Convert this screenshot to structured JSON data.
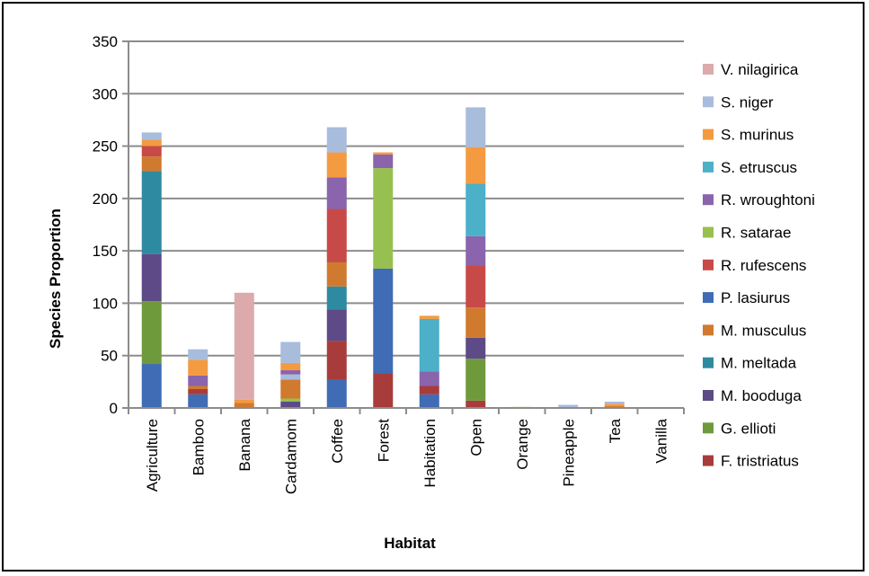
{
  "chart_data": {
    "type": "bar",
    "stacked": true,
    "title": "",
    "xlabel": "Habitat",
    "ylabel": "Species Proportion",
    "ylim": [
      0,
      350
    ],
    "yticks": [
      0,
      50,
      100,
      150,
      200,
      250,
      300,
      350
    ],
    "grid": true,
    "legend_position": "right",
    "categories": [
      "Agriculture",
      "Bamboo",
      "Banana",
      "Cardamom",
      "Coffee",
      "Forest",
      "Habitation",
      "Open",
      "Orange",
      "Pineapple",
      "Tea",
      "Vanilla"
    ],
    "series": [
      {
        "name": "F. tristriatus",
        "color": "#a83c3a",
        "values": [
          0,
          0,
          0,
          0,
          0,
          33,
          0,
          7,
          0,
          0,
          0,
          0
        ]
      },
      {
        "name": "G. ellioti",
        "color": "#6e9a3c",
        "values": [
          0,
          0,
          0,
          0,
          0,
          0,
          0,
          0,
          0,
          0,
          0,
          0
        ]
      },
      {
        "name": "M. booduga",
        "color": "#5e4a86",
        "values": [
          0,
          0,
          0,
          0,
          0,
          0,
          0,
          0,
          0,
          0,
          0,
          0
        ]
      },
      {
        "name": "M. meltada",
        "color": "#2e8aa0",
        "values": [
          0,
          0,
          0,
          0,
          0,
          0,
          0,
          0,
          0,
          0,
          0,
          0
        ]
      },
      {
        "name": "M. musculus",
        "color": "#d07a30",
        "values": [
          0,
          0,
          0,
          0,
          0,
          0,
          0,
          0,
          0,
          0,
          0,
          0
        ]
      },
      {
        "name": "P. lasiurus",
        "color": "#3f6cb4",
        "values": [
          0,
          0,
          0,
          0,
          0,
          100,
          0,
          0,
          0,
          0,
          0,
          0
        ]
      },
      {
        "name": "R. rufescens",
        "color": "#c84a48",
        "values": [
          0,
          0,
          0,
          0,
          0,
          0,
          0,
          0,
          0,
          0,
          0,
          0
        ]
      },
      {
        "name": "R. satarae",
        "color": "#98c050",
        "values": [
          0,
          0,
          0,
          0,
          0,
          96,
          0,
          0,
          0,
          0,
          0,
          0
        ]
      },
      {
        "name": "R. wroughtoni",
        "color": "#8a64ac",
        "values": [
          0,
          0,
          0,
          0,
          0,
          0,
          0,
          0,
          0,
          0,
          0,
          0
        ]
      },
      {
        "name": "S. etruscus",
        "color": "#4bb0c8",
        "values": [
          0,
          0,
          0,
          0,
          0,
          0,
          0,
          0,
          0,
          0,
          0,
          0
        ]
      },
      {
        "name": "S. murinus",
        "color": "#f49a40",
        "values": [
          0,
          0,
          0,
          0,
          0,
          0,
          0,
          0,
          0,
          0,
          0,
          0
        ]
      },
      {
        "name": "S. niger",
        "color": "#a8bcdc",
        "values": [
          0,
          0,
          0,
          0,
          0,
          0,
          0,
          0,
          0,
          0,
          0,
          0
        ]
      },
      {
        "name": "V. nilagirica",
        "color": "#dcaaaa",
        "values": [
          0,
          0,
          0,
          0,
          0,
          0,
          0,
          0,
          0,
          0,
          0,
          0
        ]
      }
    ],
    "segments": [
      [
        [
          "#3f6cb4",
          42
        ],
        [
          "#6e9a3c",
          60
        ],
        [
          "#5e4a86",
          45
        ],
        [
          "#2e8aa0",
          79
        ],
        [
          "#d07a30",
          14
        ],
        [
          "#c84a48",
          10
        ],
        [
          "#f49a40",
          6
        ],
        [
          "#a8bcdc",
          7
        ]
      ],
      [
        [
          "#3f6cb4",
          13
        ],
        [
          "#a83c3a",
          5
        ],
        [
          "#d07a30",
          3
        ],
        [
          "#8a64ac",
          10
        ],
        [
          "#f49a40",
          15
        ],
        [
          "#a8bcdc",
          10
        ]
      ],
      [
        [
          "#d07a30",
          5
        ],
        [
          "#f49a40",
          3
        ],
        [
          "#dcaaaa",
          102
        ]
      ],
      [
        [
          "#5e4a86",
          6
        ],
        [
          "#98c050",
          3
        ],
        [
          "#d07a30",
          18
        ],
        [
          "#a8bcdc",
          5
        ],
        [
          "#8a64ac",
          4
        ],
        [
          "#f49a40",
          7
        ],
        [
          "#a8bcdc",
          20
        ]
      ],
      [
        [
          "#3f6cb4",
          27
        ],
        [
          "#a83c3a",
          37
        ],
        [
          "#5e4a86",
          30
        ],
        [
          "#2e8aa0",
          22
        ],
        [
          "#d07a30",
          23
        ],
        [
          "#c84a48",
          51
        ],
        [
          "#8a64ac",
          30
        ],
        [
          "#f49a40",
          24
        ],
        [
          "#a8bcdc",
          24
        ]
      ],
      [
        [
          "#a83c3a",
          33
        ],
        [
          "#3f6cb4",
          100
        ],
        [
          "#98c050",
          96
        ],
        [
          "#8a64ac",
          13
        ],
        [
          "#f49a40",
          2
        ]
      ],
      [
        [
          "#3f6cb4",
          13
        ],
        [
          "#a83c3a",
          8
        ],
        [
          "#8a64ac",
          14
        ],
        [
          "#4bb0c8",
          50
        ],
        [
          "#f49a40",
          3
        ]
      ],
      [
        [
          "#a83c3a",
          7
        ],
        [
          "#6e9a3c",
          40
        ],
        [
          "#5e4a86",
          20
        ],
        [
          "#d07a30",
          29
        ],
        [
          "#c84a48",
          40
        ],
        [
          "#8a64ac",
          28
        ],
        [
          "#4bb0c8",
          50
        ],
        [
          "#f49a40",
          35
        ],
        [
          "#a8bcdc",
          38
        ]
      ],
      [
        [
          "#98c050",
          1
        ]
      ],
      [
        [
          "#a8bcdc",
          3
        ]
      ],
      [
        [
          "#d07a30",
          2
        ],
        [
          "#f49a40",
          2
        ],
        [
          "#a8bcdc",
          2
        ]
      ],
      []
    ],
    "legend": [
      "V. nilagirica",
      "S. niger",
      "S. murinus",
      "S. etruscus",
      "R. wroughtoni",
      "R. satarae",
      "R. rufescens",
      "P. lasiurus",
      "M. musculus",
      "M. meltada",
      "M. booduga",
      "G. ellioti",
      "F. tristriatus"
    ],
    "legend_colors": [
      "#dcaaaa",
      "#a8bcdc",
      "#f49a40",
      "#4bb0c8",
      "#8a64ac",
      "#98c050",
      "#c84a48",
      "#3f6cb4",
      "#d07a30",
      "#2e8aa0",
      "#5e4a86",
      "#6e9a3c",
      "#a83c3a"
    ]
  }
}
